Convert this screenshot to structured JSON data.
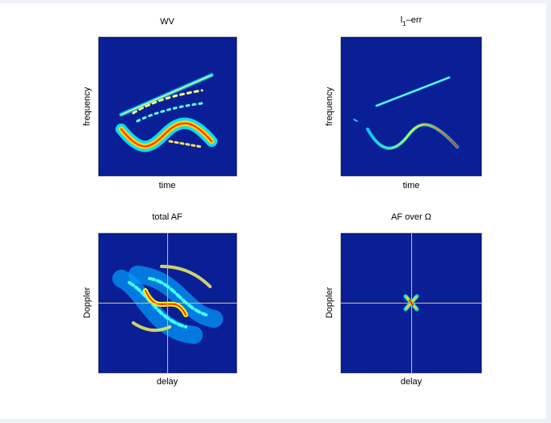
{
  "figure": {
    "panels": [
      {
        "title": "WV",
        "xlabel": "time",
        "ylabel": "frequency"
      },
      {
        "title_parts": [
          "l",
          "1",
          "–err"
        ],
        "xlabel": "time",
        "ylabel": "frequency"
      },
      {
        "title": "total AF",
        "xlabel": "delay",
        "ylabel": "Doppler"
      },
      {
        "title": "AF over Ω",
        "xlabel": "delay",
        "ylabel": "Doppler"
      }
    ]
  }
}
